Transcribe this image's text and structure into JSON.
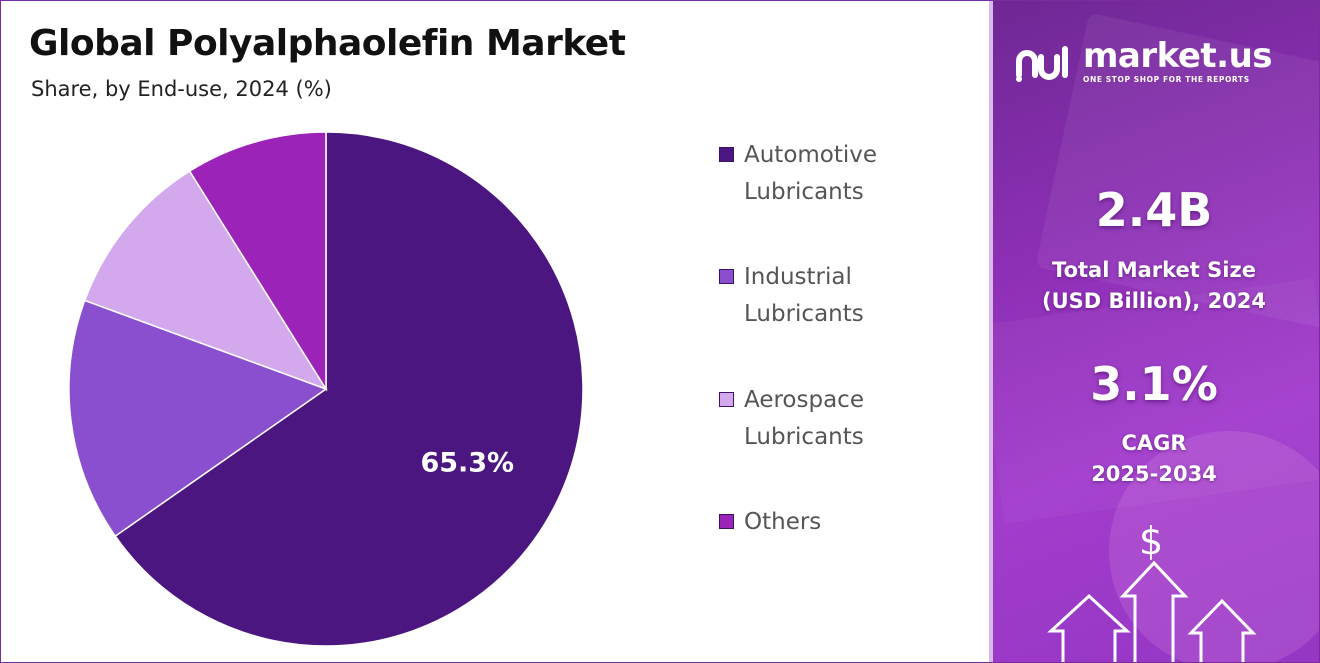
{
  "header": {
    "title": "Global Polyalphaolefin Market",
    "subtitle": "Share, by End-use, 2024 (%)"
  },
  "chart_data": {
    "type": "pie",
    "title": "Global Polyalphaolefin Market",
    "subtitle": "Share, by End-use, 2024 (%)",
    "categories": [
      "Automotive Lubricants",
      "Industrial Lubricants",
      "Aerospace Lubricants",
      "Others"
    ],
    "values": [
      65.3,
      15.3,
      10.5,
      8.9
    ],
    "colors": [
      "#4b1680",
      "#8a4fcf",
      "#d3a8ec",
      "#9b23b8"
    ],
    "data_labels": [
      "65.3%",
      "",
      "",
      ""
    ],
    "legend_position": "right"
  },
  "legend": {
    "items": [
      {
        "label": "Automotive\nLubricants",
        "color": "#4b1680"
      },
      {
        "label": "Industrial\nLubricants",
        "color": "#8a4fcf"
      },
      {
        "label": "Aerospace\nLubricants",
        "color": "#d3a8ec"
      },
      {
        "label": "Others",
        "color": "#9b23b8"
      }
    ]
  },
  "sidebar": {
    "brand_name": "market.us",
    "brand_tagline": "ONE STOP SHOP FOR THE REPORTS",
    "market_size_value": "2.4B",
    "market_size_label": "Total Market Size\n(USD Billion), 2024",
    "cagr_value": "3.1%",
    "cagr_label": "CAGR\n2025-2034",
    "dollar_symbol": "$",
    "icons": [
      "market-us-logo-icon",
      "dollar-icon",
      "up-arrow-icon"
    ]
  }
}
